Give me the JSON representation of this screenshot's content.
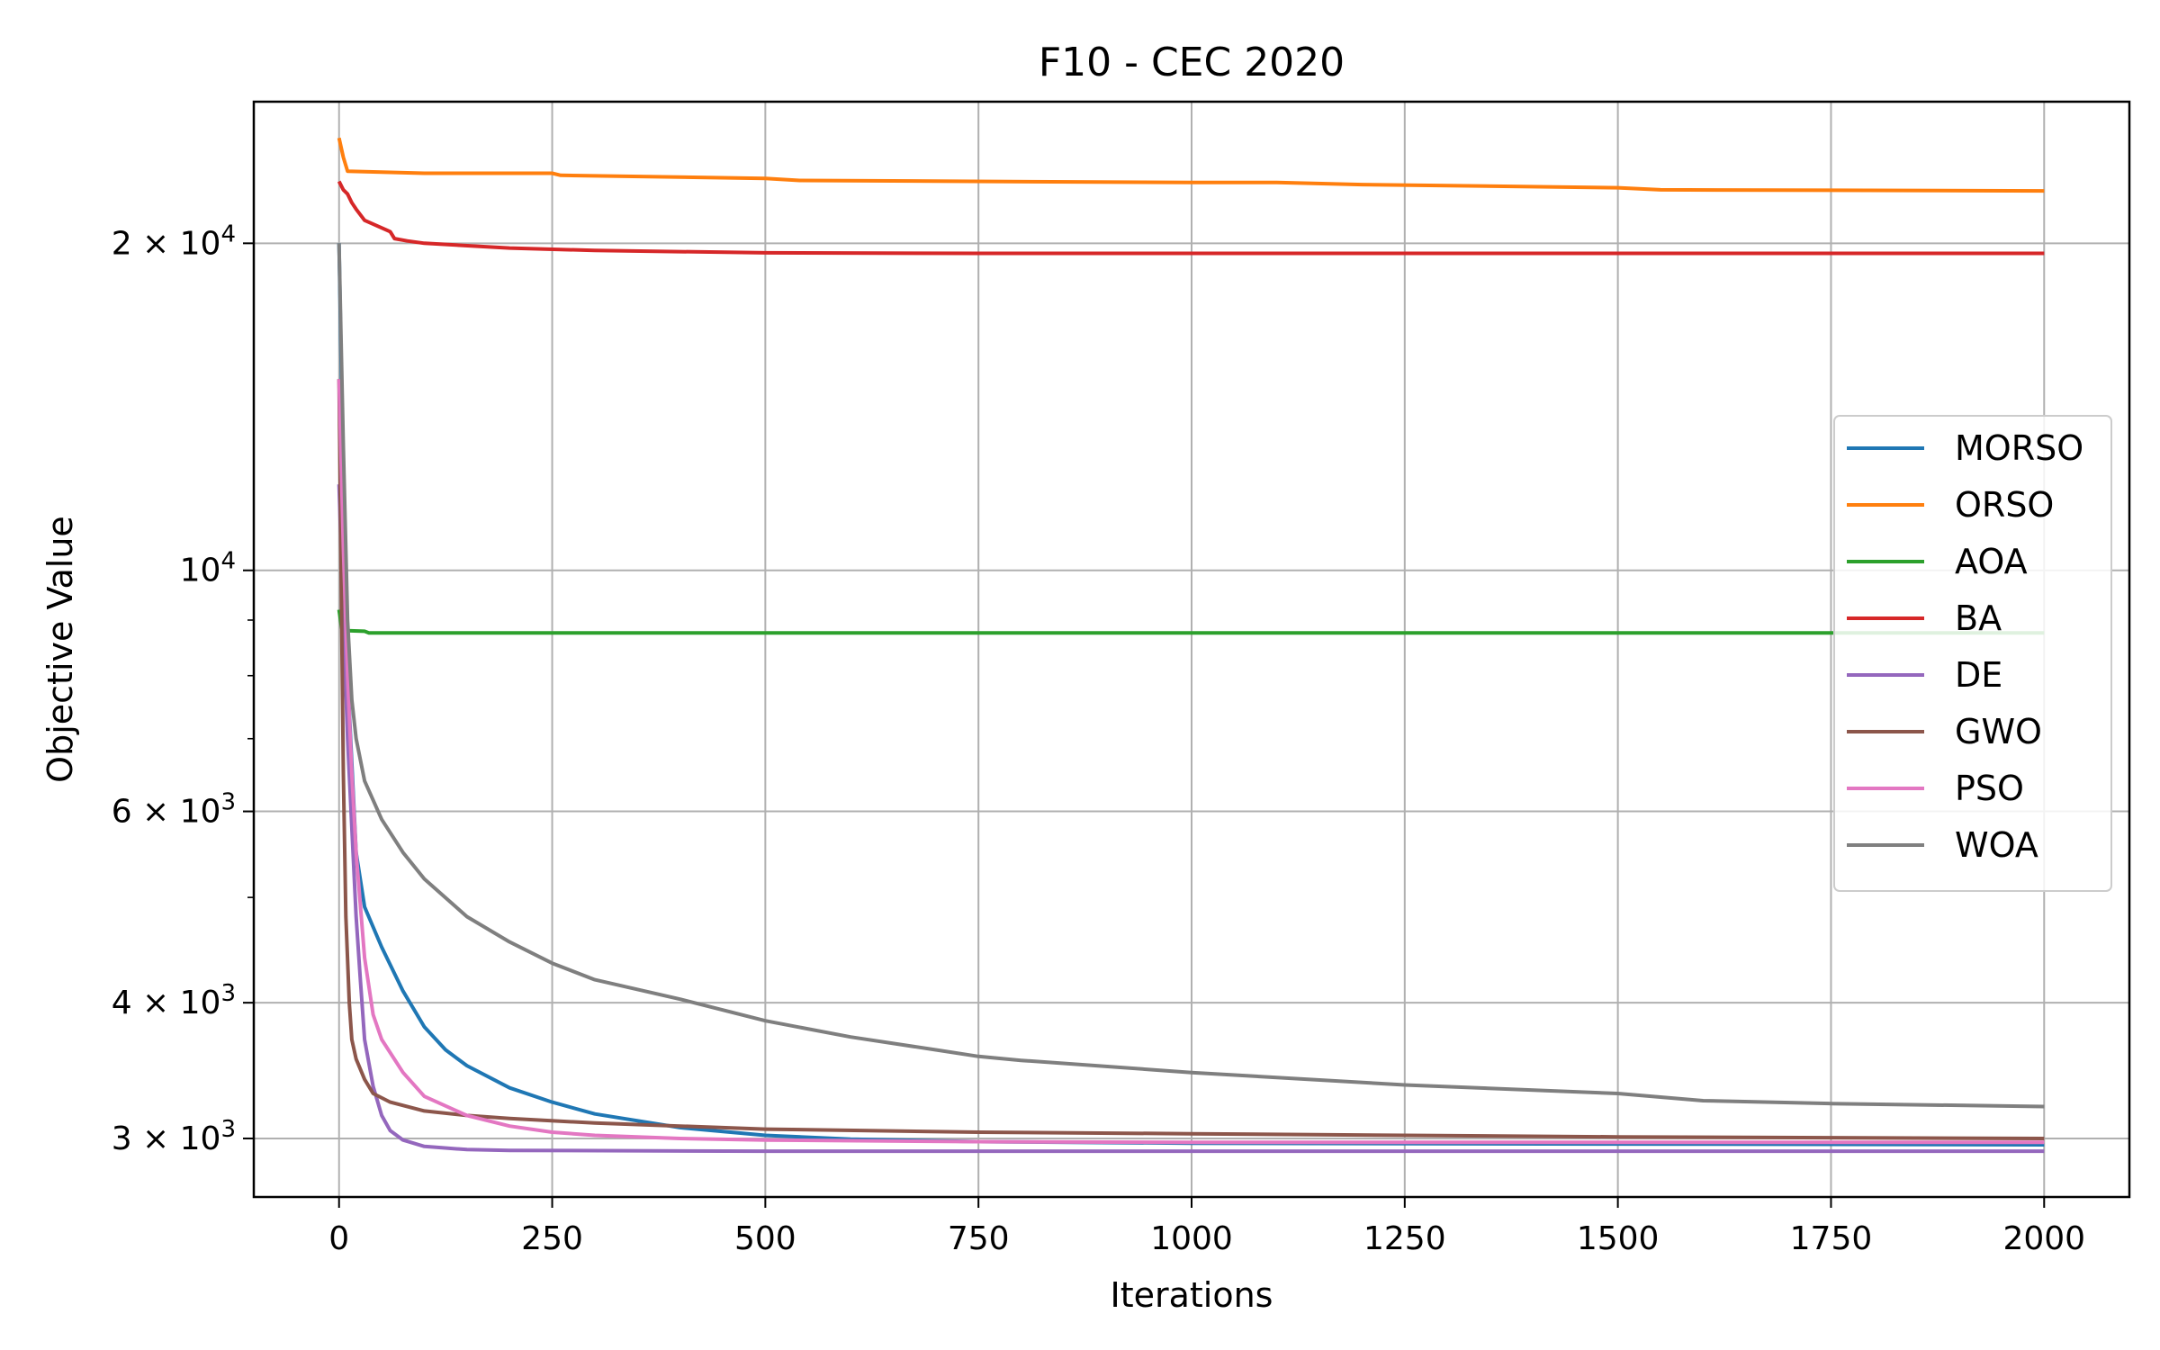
{
  "chart_data": {
    "type": "line",
    "title": "F10 - CEC 2020",
    "xlabel": "Iterations",
    "ylabel": "Objective Value",
    "xlim": [
      -100,
      2100
    ],
    "ylim": [
      2650,
      27000
    ],
    "yscale": "log",
    "grid": true,
    "legend": "center-right",
    "x_ticks": [
      0,
      250,
      500,
      750,
      1000,
      1250,
      1500,
      1750,
      2000
    ],
    "x_tick_labels": [
      "0",
      "250",
      "500",
      "750",
      "1000",
      "1250",
      "1500",
      "1750",
      "2000"
    ],
    "y_major_ticks": [
      {
        "value": 3000,
        "mantissa": "3",
        "exp": "3"
      },
      {
        "value": 4000,
        "mantissa": "4",
        "exp": "3"
      },
      {
        "value": 6000,
        "mantissa": "6",
        "exp": "3"
      },
      {
        "value": 10000,
        "mantissa": "",
        "exp": "4"
      },
      {
        "value": 20000,
        "mantissa": "2",
        "exp": "4"
      }
    ],
    "y_minor_ticks": [
      5000,
      7000,
      8000,
      9000
    ],
    "series": [
      {
        "name": "MORSO",
        "color": "#1f77b4",
        "points": [
          [
            0,
            20000
          ],
          [
            5,
            12000
          ],
          [
            10,
            8000
          ],
          [
            20,
            5500
          ],
          [
            30,
            4900
          ],
          [
            50,
            4500
          ],
          [
            75,
            4100
          ],
          [
            100,
            3800
          ],
          [
            125,
            3620
          ],
          [
            150,
            3500
          ],
          [
            200,
            3340
          ],
          [
            250,
            3240
          ],
          [
            300,
            3160
          ],
          [
            400,
            3070
          ],
          [
            500,
            3020
          ],
          [
            600,
            2995
          ],
          [
            750,
            2980
          ],
          [
            1000,
            2970
          ],
          [
            1500,
            2965
          ],
          [
            2000,
            2960
          ]
        ]
      },
      {
        "name": "ORSO",
        "color": "#ff7f0e",
        "points": [
          [
            0,
            25000
          ],
          [
            5,
            24000
          ],
          [
            10,
            23300
          ],
          [
            100,
            23200
          ],
          [
            250,
            23200
          ],
          [
            260,
            23100
          ],
          [
            500,
            22950
          ],
          [
            540,
            22850
          ],
          [
            1000,
            22750
          ],
          [
            1100,
            22750
          ],
          [
            1200,
            22650
          ],
          [
            1500,
            22500
          ],
          [
            1550,
            22400
          ],
          [
            2000,
            22350
          ]
        ]
      },
      {
        "name": "AOA",
        "color": "#2ca02c",
        "points": [
          [
            0,
            9200
          ],
          [
            3,
            8850
          ],
          [
            10,
            8800
          ],
          [
            30,
            8790
          ],
          [
            35,
            8760
          ],
          [
            100,
            8760
          ],
          [
            2000,
            8760
          ]
        ]
      },
      {
        "name": "BA",
        "color": "#d62728",
        "points": [
          [
            0,
            22800
          ],
          [
            5,
            22400
          ],
          [
            10,
            22200
          ],
          [
            15,
            21800
          ],
          [
            20,
            21500
          ],
          [
            30,
            21000
          ],
          [
            60,
            20500
          ],
          [
            65,
            20200
          ],
          [
            80,
            20100
          ],
          [
            100,
            20000
          ],
          [
            200,
            19800
          ],
          [
            300,
            19700
          ],
          [
            500,
            19600
          ],
          [
            750,
            19580
          ],
          [
            2000,
            19580
          ]
        ]
      },
      {
        "name": "DE",
        "color": "#9467bd",
        "points": [
          [
            0,
            12000
          ],
          [
            5,
            9000
          ],
          [
            10,
            7000
          ],
          [
            15,
            5800
          ],
          [
            20,
            4800
          ],
          [
            25,
            4200
          ],
          [
            30,
            3700
          ],
          [
            40,
            3350
          ],
          [
            50,
            3150
          ],
          [
            60,
            3050
          ],
          [
            75,
            2990
          ],
          [
            100,
            2950
          ],
          [
            150,
            2930
          ],
          [
            200,
            2925
          ],
          [
            500,
            2920
          ],
          [
            1000,
            2920
          ],
          [
            2000,
            2920
          ]
        ]
      },
      {
        "name": "GWO",
        "color": "#8c564b",
        "points": [
          [
            0,
            15000
          ],
          [
            3,
            9000
          ],
          [
            5,
            6500
          ],
          [
            8,
            4800
          ],
          [
            12,
            4000
          ],
          [
            15,
            3700
          ],
          [
            20,
            3550
          ],
          [
            30,
            3400
          ],
          [
            40,
            3300
          ],
          [
            60,
            3240
          ],
          [
            100,
            3180
          ],
          [
            150,
            3150
          ],
          [
            200,
            3130
          ],
          [
            300,
            3100
          ],
          [
            400,
            3080
          ],
          [
            500,
            3060
          ],
          [
            750,
            3040
          ],
          [
            1000,
            3030
          ],
          [
            1250,
            3020
          ],
          [
            1500,
            3010
          ],
          [
            1750,
            3005
          ],
          [
            2000,
            3000
          ]
        ]
      },
      {
        "name": "PSO",
        "color": "#e377c2",
        "points": [
          [
            0,
            15000
          ],
          [
            5,
            10500
          ],
          [
            10,
            8000
          ],
          [
            15,
            6500
          ],
          [
            20,
            5500
          ],
          [
            30,
            4400
          ],
          [
            40,
            3900
          ],
          [
            50,
            3700
          ],
          [
            75,
            3450
          ],
          [
            100,
            3280
          ],
          [
            150,
            3150
          ],
          [
            200,
            3080
          ],
          [
            250,
            3040
          ],
          [
            300,
            3020
          ],
          [
            400,
            3000
          ],
          [
            500,
            2990
          ],
          [
            750,
            2980
          ],
          [
            1000,
            2975
          ],
          [
            1500,
            2975
          ],
          [
            2000,
            2975
          ]
        ]
      },
      {
        "name": "WOA",
        "color": "#7f7f7f",
        "points": [
          [
            0,
            20000
          ],
          [
            5,
            13000
          ],
          [
            10,
            9000
          ],
          [
            15,
            7600
          ],
          [
            20,
            7000
          ],
          [
            30,
            6400
          ],
          [
            50,
            5900
          ],
          [
            75,
            5500
          ],
          [
            100,
            5200
          ],
          [
            150,
            4800
          ],
          [
            200,
            4550
          ],
          [
            250,
            4350
          ],
          [
            300,
            4200
          ],
          [
            400,
            4030
          ],
          [
            500,
            3850
          ],
          [
            600,
            3720
          ],
          [
            700,
            3620
          ],
          [
            750,
            3570
          ],
          [
            800,
            3540
          ],
          [
            1000,
            3450
          ],
          [
            1250,
            3360
          ],
          [
            1500,
            3300
          ],
          [
            1600,
            3250
          ],
          [
            1750,
            3230
          ],
          [
            2000,
            3210
          ]
        ]
      }
    ]
  }
}
